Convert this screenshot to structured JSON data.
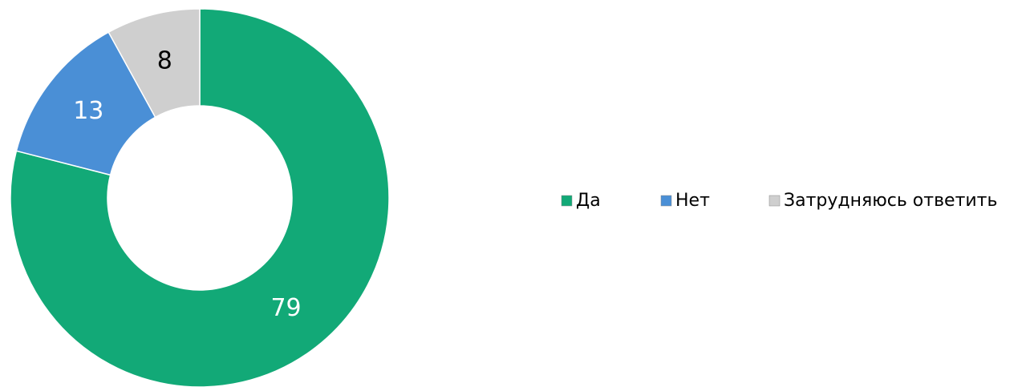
{
  "chart_data": {
    "type": "donut",
    "categories": [
      "Да",
      "Нет",
      "Затрудняюсь ответить"
    ],
    "values": [
      79,
      13,
      8
    ],
    "colors": [
      "#12a977",
      "#4a8fd6",
      "#cfcfcf"
    ],
    "label_colors": [
      "#ffffff",
      "#ffffff",
      "#000000"
    ],
    "legend": "right"
  }
}
